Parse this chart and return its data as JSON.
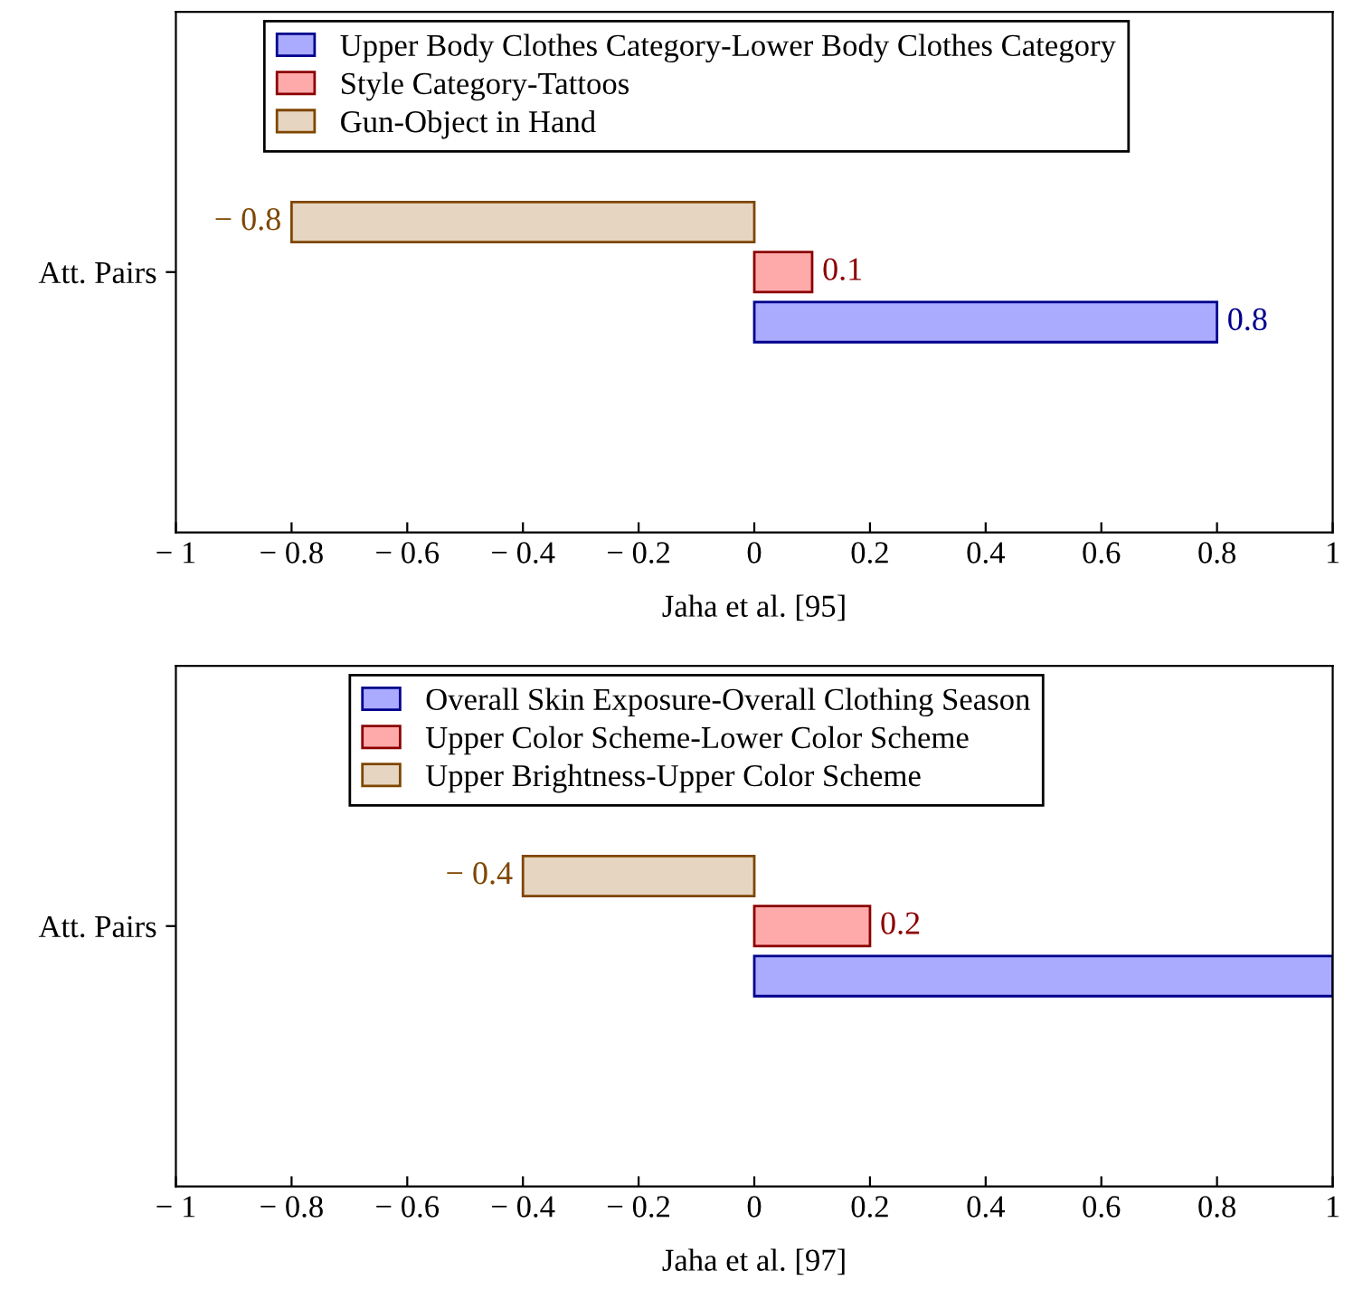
{
  "chart_data": [
    {
      "type": "bar",
      "orientation": "horizontal",
      "categories": [
        "Att. Pairs"
      ],
      "xlabel": "Jaha et al. [95]",
      "xlim": [
        -1,
        1
      ],
      "xticks": [
        {
          "value": -1,
          "label": "− 1"
        },
        {
          "value": -0.8,
          "label": "− 0.8"
        },
        {
          "value": -0.6,
          "label": "− 0.6"
        },
        {
          "value": -0.4,
          "label": "− 0.4"
        },
        {
          "value": -0.2,
          "label": "− 0.2"
        },
        0,
        0.2,
        0.4,
        0.6,
        0.8,
        1
      ],
      "grid": false,
      "legend": "top",
      "series": [
        {
          "name": "Upper Body Clothes Category-Lower Body Clothes Category",
          "color": "#aaaaff",
          "values": [
            0.8
          ],
          "value_labels": [
            "0.8"
          ]
        },
        {
          "name": "Style Category-Tattoos",
          "color": "#ffaaaa",
          "values": [
            0.1
          ],
          "value_labels": [
            "0.1"
          ]
        },
        {
          "name": "Gun-Object in Hand",
          "color": "#e6d5c0",
          "values": [
            -0.8
          ],
          "value_labels": [
            "− 0.8"
          ]
        }
      ]
    },
    {
      "type": "bar",
      "orientation": "horizontal",
      "categories": [
        "Att. Pairs"
      ],
      "xlabel": "Jaha et al. [97]",
      "xlim": [
        -1,
        1
      ],
      "xticks": [
        {
          "value": -1,
          "label": "− 1"
        },
        {
          "value": -0.8,
          "label": "− 0.8"
        },
        {
          "value": -0.6,
          "label": "− 0.6"
        },
        {
          "value": -0.4,
          "label": "− 0.4"
        },
        {
          "value": -0.2,
          "label": "− 0.2"
        },
        0,
        0.2,
        0.4,
        0.6,
        0.8,
        1
      ],
      "grid": false,
      "legend": "top",
      "series": [
        {
          "name": "Overall Skin Exposure-Overall Clothing Season",
          "color": "#aaaaff",
          "values": [
            1
          ],
          "value_labels": [
            null
          ]
        },
        {
          "name": "Upper Color Scheme-Lower Color Scheme",
          "color": "#ffaaaa",
          "values": [
            0.2
          ],
          "value_labels": [
            "0.2"
          ]
        },
        {
          "name": "Upper Brightness-Upper Color Scheme",
          "color": "#e6d5c0",
          "values": [
            -0.4
          ],
          "value_labels": [
            "− 0.4"
          ]
        }
      ]
    }
  ]
}
